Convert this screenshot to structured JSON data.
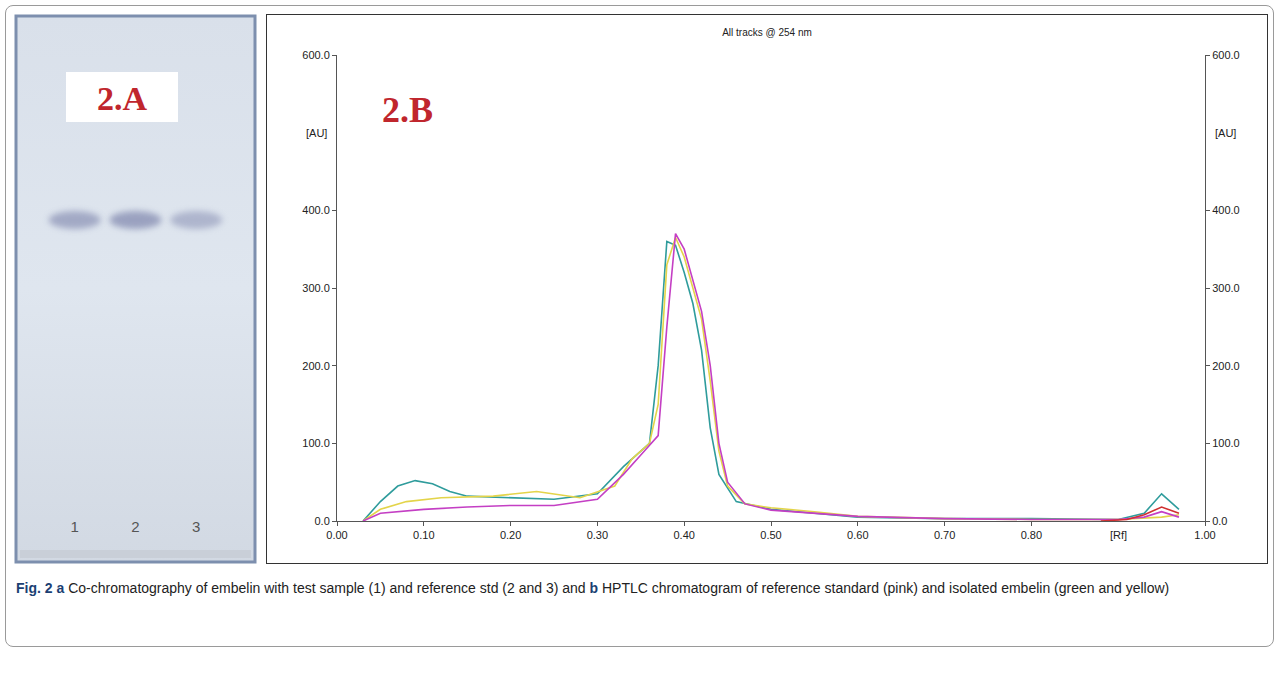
{
  "panel_a": {
    "label": "2.A",
    "lane_labels": [
      "1",
      "2",
      "3"
    ]
  },
  "chart_data": {
    "type": "line",
    "title": "All tracks @ 254 nm",
    "x_label": "[Rf]",
    "y_label": "[AU]",
    "y2_label": "[AU]",
    "annotations": [
      "2.B"
    ],
    "grid": false,
    "xlim": [
      0,
      1
    ],
    "xticks": [
      {
        "value": 0,
        "label": "0.00"
      },
      {
        "value": 0.1,
        "label": "0.10"
      },
      {
        "value": 0.2,
        "label": "0.20"
      },
      {
        "value": 0.3,
        "label": "0.30"
      },
      {
        "value": 0.4,
        "label": "0.40"
      },
      {
        "value": 0.5,
        "label": "0.50"
      },
      {
        "value": 0.6,
        "label": "0.60"
      },
      {
        "value": 0.7,
        "label": "0.70"
      },
      {
        "value": 0.8,
        "label": "0.80"
      },
      {
        "value": 1,
        "label": "1.00"
      }
    ],
    "ylim": [
      0,
      600
    ],
    "yticks": [
      {
        "value": 0,
        "label": "0.0"
      },
      {
        "value": 100,
        "label": "100.0"
      },
      {
        "value": 200,
        "label": "200.0"
      },
      {
        "value": 300,
        "label": "300.0"
      },
      {
        "value": 400,
        "label": "400.0"
      },
      {
        "value": 600,
        "label": "600.0"
      }
    ],
    "y2lim": [
      0,
      600
    ],
    "y2ticks": [
      {
        "value": 0,
        "label": "0.0"
      },
      {
        "value": 100,
        "label": "100.0"
      },
      {
        "value": 200,
        "label": "200.0"
      },
      {
        "value": 300,
        "label": "300.0"
      },
      {
        "value": 400,
        "label": "400.0"
      },
      {
        "value": 600,
        "label": "600.0"
      }
    ],
    "series": [
      {
        "color": "#2f9c9c",
        "x": [
          0.03,
          0.05,
          0.07,
          0.09,
          0.11,
          0.13,
          0.15,
          0.2,
          0.25,
          0.3,
          0.33,
          0.35,
          0.36,
          0.37,
          0.38,
          0.39,
          0.4,
          0.41,
          0.42,
          0.43,
          0.44,
          0.46,
          0.5,
          0.55,
          0.6,
          0.7,
          0.8,
          0.9,
          0.93,
          0.95,
          0.97
        ],
        "values": [
          0,
          25,
          45,
          52,
          48,
          38,
          32,
          30,
          28,
          35,
          70,
          90,
          100,
          200,
          360,
          355,
          320,
          280,
          220,
          120,
          60,
          25,
          15,
          10,
          5,
          3,
          3,
          2,
          10,
          35,
          15
        ]
      },
      {
        "color": "#e3d44a",
        "x": [
          0.03,
          0.05,
          0.08,
          0.12,
          0.18,
          0.23,
          0.28,
          0.32,
          0.34,
          0.36,
          0.37,
          0.38,
          0.39,
          0.4,
          0.41,
          0.42,
          0.43,
          0.44,
          0.45,
          0.47,
          0.5,
          0.55,
          0.6,
          0.7,
          0.8,
          0.9,
          0.95,
          0.97
        ],
        "values": [
          0,
          15,
          25,
          30,
          32,
          38,
          30,
          45,
          80,
          100,
          150,
          330,
          365,
          340,
          300,
          260,
          180,
          90,
          45,
          22,
          17,
          12,
          6,
          3,
          2,
          2,
          5,
          8
        ]
      },
      {
        "color": "#c43fc4",
        "x": [
          0.03,
          0.05,
          0.1,
          0.15,
          0.2,
          0.25,
          0.3,
          0.33,
          0.35,
          0.37,
          0.38,
          0.39,
          0.4,
          0.41,
          0.42,
          0.43,
          0.44,
          0.45,
          0.47,
          0.5,
          0.55,
          0.6,
          0.7,
          0.8,
          0.9,
          0.93,
          0.95,
          0.97
        ],
        "values": [
          0,
          10,
          15,
          18,
          20,
          20,
          28,
          60,
          85,
          110,
          250,
          370,
          350,
          310,
          270,
          200,
          100,
          50,
          22,
          14,
          10,
          6,
          3,
          2,
          2,
          5,
          12,
          5
        ]
      },
      {
        "color": "#d03030",
        "x": [
          0.88,
          0.91,
          0.93,
          0.95,
          0.97
        ],
        "values": [
          0,
          2,
          8,
          18,
          10
        ]
      }
    ]
  },
  "caption": [
    {
      "text": "Fig. 2",
      "bold": true
    },
    {
      "text": "a",
      "bold": true
    },
    {
      "text": "Co-chromatography of embelin with test sample (1) and reference std (2 and 3) and",
      "bold": false
    },
    {
      "text": "b",
      "bold": true
    },
    {
      "text": "HPTLC chromatogram of reference standard (pink) and isolated embelin (green and yellow)",
      "bold": false
    }
  ]
}
